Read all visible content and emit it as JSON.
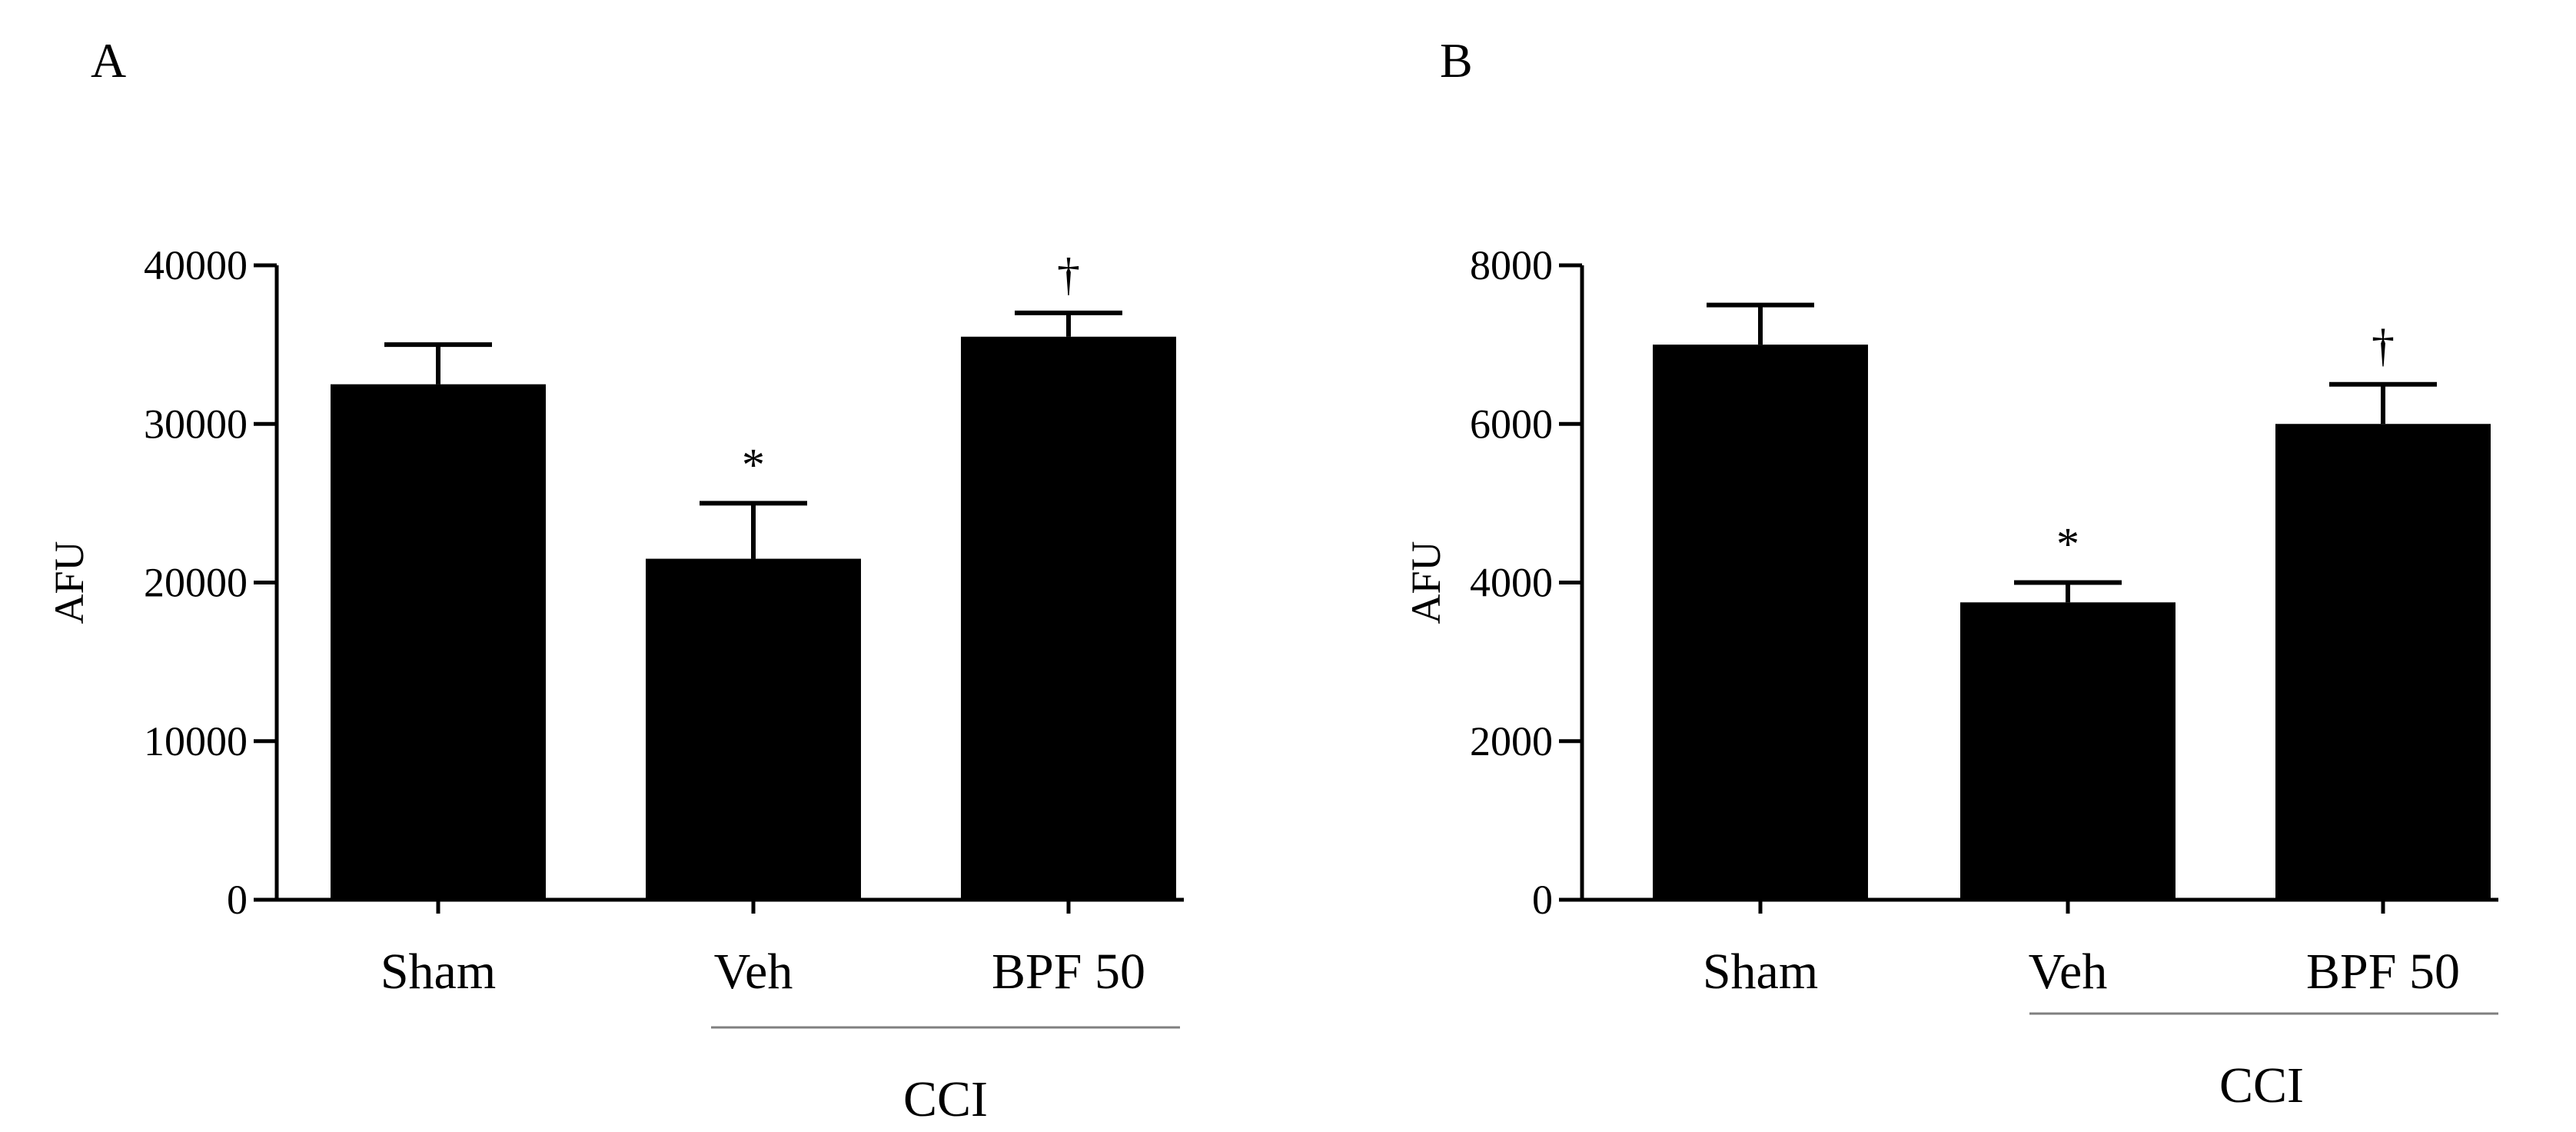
{
  "chart_data": [
    {
      "type": "bar",
      "panel": "A",
      "ylabel": "AFU",
      "xlabel": "",
      "ylim": [
        0,
        40000
      ],
      "yticks": [
        0,
        10000,
        20000,
        30000,
        40000
      ],
      "categories": [
        "Sham",
        "Veh",
        "BPF 50"
      ],
      "values": [
        32500,
        21500,
        35500
      ],
      "errors": [
        2500,
        3500,
        1500
      ],
      "annotations": [
        "",
        "*",
        "†"
      ],
      "group": {
        "label": "CCI",
        "spans": [
          "Veh",
          "BPF 50"
        ]
      }
    },
    {
      "type": "bar",
      "panel": "B",
      "ylabel": "AFU",
      "xlabel": "",
      "ylim": [
        0,
        8000
      ],
      "yticks": [
        0,
        2000,
        4000,
        6000,
        8000
      ],
      "categories": [
        "Sham",
        "Veh",
        "BPF 50"
      ],
      "values": [
        7000,
        3750,
        6000
      ],
      "errors": [
        500,
        250,
        500
      ],
      "annotations": [
        "",
        "*",
        "†"
      ],
      "group": {
        "label": "CCI",
        "spans": [
          "Veh",
          "BPF 50"
        ]
      }
    }
  ],
  "colors": {
    "bar": "#000000",
    "axis": "#000000",
    "group_line": "#808080"
  }
}
